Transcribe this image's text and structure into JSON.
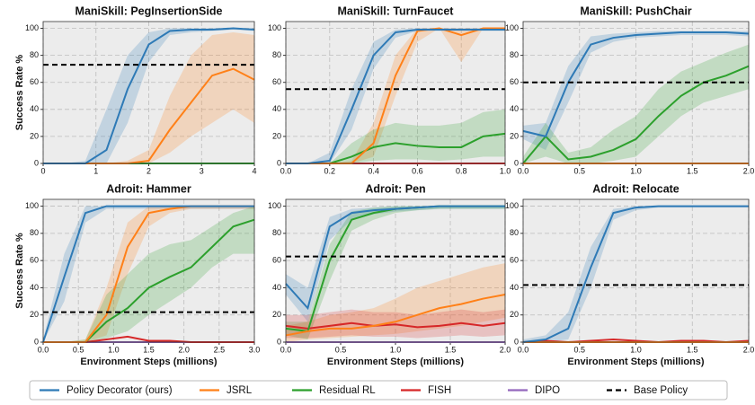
{
  "baseline_name": "Base Policy",
  "chart_data": [
    {
      "type": "line",
      "title": "ManiSkill: PegInsertionSide",
      "ylabel": "Success Rate %",
      "x": [
        0,
        0.4,
        0.8,
        1.2,
        1.6,
        2.0,
        2.4,
        2.8,
        3.2,
        3.6,
        4.0
      ],
      "xlim": [
        0,
        4
      ],
      "xticks": [
        0,
        1,
        2,
        3,
        4
      ],
      "ylim": [
        0,
        105
      ],
      "yticks": [
        0,
        20,
        40,
        60,
        80,
        100
      ],
      "grid": true,
      "baseline": 73,
      "series": [
        {
          "name": "Policy Decorator (ours)",
          "color": "#2e7ab6",
          "values": [
            0,
            0,
            0,
            10,
            55,
            88,
            98,
            99,
            99,
            100,
            99
          ],
          "lower": [
            0,
            0,
            0,
            0,
            30,
            75,
            95,
            97,
            98,
            99,
            98
          ],
          "upper": [
            0,
            0,
            2,
            40,
            80,
            97,
            100,
            100,
            100,
            100,
            100
          ]
        },
        {
          "name": "JSRL",
          "color": "#ff8018",
          "values": [
            0,
            0,
            0,
            0,
            0,
            2,
            25,
            45,
            65,
            70,
            62
          ],
          "lower": [
            0,
            0,
            0,
            0,
            0,
            0,
            8,
            20,
            30,
            40,
            30
          ],
          "upper": [
            0,
            0,
            0,
            0,
            2,
            10,
            50,
            80,
            95,
            97,
            95
          ]
        },
        {
          "name": "Residual RL",
          "color": "#2ca02c",
          "values": [
            0,
            0,
            0,
            0,
            0,
            0,
            0,
            0,
            0,
            0,
            0
          ]
        },
        {
          "name": "FISH",
          "color": "#d62728",
          "values": [
            0,
            0,
            0,
            0,
            0,
            0,
            0,
            0,
            0,
            0,
            0
          ]
        },
        {
          "name": "DIPO",
          "color": "#9467bd",
          "values": [
            0,
            0,
            0,
            0,
            0,
            0,
            0,
            0,
            0,
            0,
            0
          ]
        }
      ]
    },
    {
      "type": "line",
      "title": "ManiSkill: TurnFaucet",
      "x": [
        0,
        0.1,
        0.2,
        0.3,
        0.4,
        0.5,
        0.6,
        0.7,
        0.8,
        0.9,
        1.0
      ],
      "xlim": [
        0,
        1
      ],
      "xticks": [
        {
          "value": 0,
          "label": "0.0"
        },
        0.2,
        0.4,
        0.6,
        0.8,
        {
          "value": 1,
          "label": "1.0"
        }
      ],
      "ylim": [
        0,
        105
      ],
      "yticks": [
        0,
        20,
        40,
        60,
        80,
        100
      ],
      "grid": true,
      "baseline": 55,
      "series": [
        {
          "name": "Policy Decorator (ours)",
          "color": "#2e7ab6",
          "values": [
            0,
            0,
            2,
            40,
            80,
            97,
            99,
            99,
            99,
            99,
            99
          ],
          "lower": [
            0,
            0,
            0,
            25,
            70,
            93,
            98,
            98,
            98,
            98,
            98
          ],
          "upper": [
            0,
            0,
            8,
            55,
            90,
            99,
            100,
            100,
            100,
            100,
            100
          ]
        },
        {
          "name": "JSRL",
          "color": "#ff8018",
          "values": [
            0,
            0,
            0,
            0,
            15,
            65,
            98,
            100,
            95,
            100,
            100
          ],
          "lower": [
            0,
            0,
            0,
            0,
            5,
            50,
            90,
            100,
            75,
            100,
            100
          ],
          "upper": [
            0,
            0,
            0,
            2,
            30,
            80,
            100,
            100,
            100,
            100,
            100
          ]
        },
        {
          "name": "Residual RL",
          "color": "#2ca02c",
          "values": [
            0,
            0,
            0,
            5,
            12,
            15,
            13,
            12,
            12,
            20,
            22
          ],
          "lower": [
            0,
            0,
            0,
            0,
            2,
            3,
            3,
            2,
            3,
            5,
            5
          ],
          "upper": [
            0,
            0,
            0,
            15,
            25,
            30,
            28,
            28,
            30,
            38,
            40
          ]
        },
        {
          "name": "FISH",
          "color": "#d62728",
          "values": [
            0,
            0,
            0,
            0,
            0,
            0,
            0,
            0,
            0,
            0,
            0
          ]
        },
        {
          "name": "DIPO",
          "color": "#9467bd",
          "values": [
            0,
            0,
            0,
            0,
            0,
            0,
            0,
            0,
            0,
            0,
            0
          ]
        }
      ]
    },
    {
      "type": "line",
      "title": "ManiSkill: PushChair",
      "x": [
        0,
        0.2,
        0.4,
        0.6,
        0.8,
        1.0,
        1.2,
        1.4,
        1.6,
        1.8,
        2.0
      ],
      "xlim": [
        0,
        2
      ],
      "xticks": [
        {
          "value": 0,
          "label": "0.0"
        },
        0.5,
        {
          "value": 1,
          "label": "1.0"
        },
        1.5,
        {
          "value": 2,
          "label": "2.0"
        }
      ],
      "ylim": [
        0,
        105
      ],
      "yticks": [
        0,
        20,
        40,
        60,
        80,
        100
      ],
      "grid": true,
      "baseline": 60,
      "series": [
        {
          "name": "Policy Decorator (ours)",
          "color": "#2e7ab6",
          "values": [
            24,
            20,
            60,
            88,
            93,
            95,
            96,
            97,
            97,
            97,
            96
          ],
          "lower": [
            18,
            10,
            45,
            82,
            90,
            93,
            94,
            95,
            95,
            95,
            94
          ],
          "upper": [
            28,
            30,
            72,
            94,
            96,
            97,
            98,
            98,
            98,
            98,
            98
          ]
        },
        {
          "name": "JSRL",
          "color": "#ff8018",
          "values": [
            0,
            0,
            0,
            0,
            0,
            0,
            0,
            0,
            0,
            0,
            0
          ]
        },
        {
          "name": "Residual RL",
          "color": "#2ca02c",
          "values": [
            0,
            20,
            3,
            5,
            10,
            18,
            35,
            50,
            60,
            65,
            72
          ],
          "lower": [
            0,
            5,
            0,
            0,
            2,
            5,
            20,
            35,
            45,
            50,
            55
          ],
          "upper": [
            5,
            30,
            8,
            12,
            25,
            35,
            55,
            68,
            75,
            82,
            88
          ]
        },
        {
          "name": "FISH",
          "color": "#d62728",
          "values": [
            0,
            0,
            0,
            0,
            0,
            0,
            0,
            0,
            0,
            0,
            0
          ]
        },
        {
          "name": "DIPO",
          "color": "#9467bd",
          "values": [
            0,
            0,
            0,
            0,
            0,
            0,
            0,
            0,
            0,
            0,
            0
          ]
        }
      ]
    },
    {
      "type": "line",
      "title": "Adroit: Hammer",
      "ylabel": "Success Rate %",
      "xlabel": "Environment Steps (millions)",
      "x": [
        0,
        0.3,
        0.6,
        0.9,
        1.2,
        1.5,
        1.8,
        2.1,
        2.4,
        2.7,
        3.0
      ],
      "xlim": [
        0,
        3
      ],
      "xticks": [
        {
          "value": 0,
          "label": "0.0"
        },
        0.5,
        {
          "value": 1,
          "label": "1.0"
        },
        1.5,
        {
          "value": 2,
          "label": "2.0"
        },
        2.5,
        {
          "value": 3,
          "label": "3.0"
        }
      ],
      "ylim": [
        0,
        105
      ],
      "yticks": [
        0,
        20,
        40,
        60,
        80,
        100
      ],
      "grid": true,
      "baseline": 22,
      "series": [
        {
          "name": "Policy Decorator (ours)",
          "color": "#2e7ab6",
          "values": [
            0,
            48,
            95,
            100,
            100,
            100,
            100,
            100,
            100,
            100,
            100
          ],
          "lower": [
            0,
            30,
            88,
            98,
            98,
            98,
            98,
            98,
            98,
            98,
            98
          ],
          "upper": [
            2,
            65,
            100,
            100,
            100,
            100,
            100,
            100,
            100,
            100,
            100
          ]
        },
        {
          "name": "JSRL",
          "color": "#ff8018",
          "values": [
            0,
            0,
            0,
            20,
            70,
            95,
            98,
            100,
            100,
            100,
            100
          ],
          "lower": [
            0,
            0,
            0,
            5,
            50,
            85,
            95,
            98,
            98,
            98,
            98
          ],
          "upper": [
            0,
            0,
            2,
            40,
            88,
            100,
            100,
            100,
            100,
            100,
            100
          ]
        },
        {
          "name": "Residual RL",
          "color": "#2ca02c",
          "values": [
            0,
            0,
            0,
            15,
            25,
            40,
            48,
            55,
            70,
            85,
            90
          ],
          "lower": [
            0,
            0,
            0,
            3,
            8,
            20,
            30,
            40,
            55,
            65,
            65
          ],
          "upper": [
            0,
            0,
            2,
            35,
            50,
            65,
            72,
            75,
            85,
            95,
            100
          ]
        },
        {
          "name": "FISH",
          "color": "#d62728",
          "values": [
            0,
            0,
            0,
            2,
            4,
            1,
            1,
            0,
            0,
            0,
            0
          ]
        },
        {
          "name": "DIPO",
          "color": "#9467bd",
          "values": [
            0,
            0,
            0,
            0,
            0,
            0,
            0,
            0,
            0,
            0,
            0
          ]
        }
      ]
    },
    {
      "type": "line",
      "title": "Adroit: Pen",
      "xlabel": "Environment Steps (millions)",
      "x": [
        0,
        0.2,
        0.4,
        0.6,
        0.8,
        1.0,
        1.2,
        1.4,
        1.6,
        1.8,
        2.0
      ],
      "xlim": [
        0,
        2
      ],
      "xticks": [
        {
          "value": 0,
          "label": "0.0"
        },
        0.5,
        {
          "value": 1,
          "label": "1.0"
        },
        1.5,
        {
          "value": 2,
          "label": "2.0"
        }
      ],
      "ylim": [
        0,
        105
      ],
      "yticks": [
        0,
        20,
        40,
        60,
        80,
        100
      ],
      "grid": true,
      "baseline": 63,
      "series": [
        {
          "name": "Policy Decorator (ours)",
          "color": "#2e7ab6",
          "values": [
            43,
            25,
            85,
            95,
            97,
            98,
            99,
            100,
            100,
            100,
            100
          ],
          "lower": [
            35,
            15,
            75,
            90,
            94,
            96,
            97,
            98,
            98,
            98,
            98
          ],
          "upper": [
            50,
            40,
            92,
            98,
            99,
            100,
            100,
            100,
            100,
            100,
            100
          ]
        },
        {
          "name": "JSRL",
          "color": "#ff8018",
          "values": [
            5,
            8,
            10,
            10,
            12,
            15,
            20,
            25,
            28,
            32,
            35
          ],
          "lower": [
            0,
            2,
            3,
            4,
            5,
            6,
            8,
            10,
            12,
            15,
            18
          ],
          "upper": [
            12,
            15,
            20,
            22,
            25,
            32,
            40,
            45,
            50,
            55,
            58
          ]
        },
        {
          "name": "Residual RL",
          "color": "#2ca02c",
          "values": [
            10,
            8,
            60,
            90,
            95,
            98,
            99,
            100,
            100,
            100,
            100
          ],
          "lower": [
            5,
            2,
            45,
            82,
            90,
            95,
            97,
            98,
            98,
            98,
            98
          ],
          "upper": [
            15,
            15,
            72,
            96,
            99,
            100,
            100,
            100,
            100,
            100,
            100
          ]
        },
        {
          "name": "FISH",
          "color": "#d62728",
          "values": [
            12,
            10,
            12,
            14,
            12,
            13,
            11,
            12,
            14,
            12,
            14
          ],
          "lower": [
            3,
            3,
            4,
            5,
            4,
            4,
            3,
            4,
            5,
            4,
            5
          ],
          "upper": [
            20,
            20,
            22,
            24,
            22,
            22,
            20,
            22,
            24,
            22,
            24
          ]
        },
        {
          "name": "DIPO",
          "color": "#9467bd",
          "values": [
            0,
            0,
            0,
            0,
            0,
            0,
            0,
            0,
            0,
            0,
            0
          ]
        }
      ]
    },
    {
      "type": "line",
      "title": "Adroit: Relocate",
      "xlabel": "Environment Steps (millions)",
      "x": [
        0,
        0.2,
        0.4,
        0.6,
        0.8,
        1.0,
        1.2,
        1.4,
        1.6,
        1.8,
        2.0
      ],
      "xlim": [
        0,
        2
      ],
      "xticks": [
        {
          "value": 0,
          "label": "0.0"
        },
        0.5,
        {
          "value": 1,
          "label": "1.0"
        },
        1.5,
        {
          "value": 2,
          "label": "2.0"
        }
      ],
      "ylim": [
        0,
        105
      ],
      "yticks": [
        0,
        20,
        40,
        60,
        80,
        100
      ],
      "grid": true,
      "baseline": 42,
      "series": [
        {
          "name": "Policy Decorator (ours)",
          "color": "#2e7ab6",
          "values": [
            0,
            2,
            10,
            55,
            95,
            99,
            100,
            100,
            100,
            100,
            100
          ],
          "lower": [
            0,
            0,
            2,
            40,
            90,
            97,
            99,
            99,
            99,
            99,
            99
          ],
          "upper": [
            2,
            5,
            22,
            70,
            98,
            100,
            100,
            100,
            100,
            100,
            100
          ]
        },
        {
          "name": "JSRL",
          "color": "#ff8018",
          "values": [
            0,
            0,
            0,
            0,
            0,
            0,
            0,
            0,
            0,
            0,
            0
          ]
        },
        {
          "name": "Residual RL",
          "color": "#2ca02c",
          "values": [
            0,
            0,
            0,
            0,
            0,
            0,
            0,
            0,
            0,
            0,
            0
          ]
        },
        {
          "name": "FISH",
          "color": "#d62728",
          "values": [
            0,
            1,
            0,
            1,
            2,
            1,
            0,
            1,
            1,
            0,
            1
          ]
        },
        {
          "name": "DIPO",
          "color": "#9467bd",
          "values": [
            0,
            0,
            0,
            0,
            0,
            0,
            0,
            0,
            0,
            0,
            0
          ]
        }
      ]
    }
  ]
}
